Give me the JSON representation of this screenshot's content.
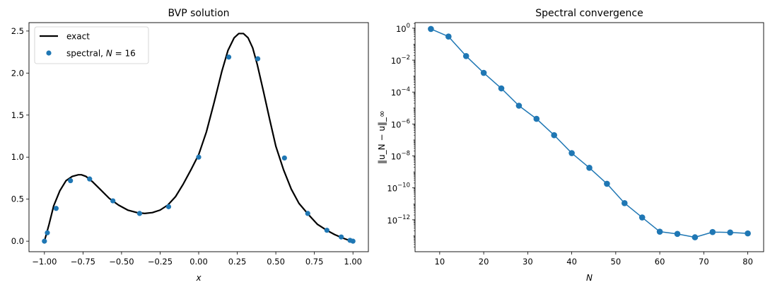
{
  "chart_data": [
    {
      "type": "line",
      "title": "BVP solution",
      "xlabel": "x",
      "ylabel": "",
      "xlim": [
        -1.1,
        1.1
      ],
      "ylim": [
        -0.125,
        2.6
      ],
      "xticks": [
        -1.0,
        -0.75,
        -0.5,
        -0.25,
        0.0,
        0.25,
        0.5,
        0.75,
        1.0
      ],
      "xtick_labels": [
        "−1.00",
        "−0.75",
        "−0.50",
        "−0.25",
        "0.00",
        "0.25",
        "0.50",
        "0.75",
        "1.00"
      ],
      "yticks": [
        0.0,
        0.5,
        1.0,
        1.5,
        2.0,
        2.5
      ],
      "ytick_labels": [
        "0.0",
        "0.5",
        "1.0",
        "1.5",
        "2.0",
        "2.5"
      ],
      "grid": false,
      "legend_position": "top-left",
      "series": [
        {
          "name": "exact",
          "style": "line",
          "color": "#000000",
          "x": [
            -1.0,
            -0.97,
            -0.94,
            -0.9,
            -0.86,
            -0.82,
            -0.78,
            -0.76,
            -0.73,
            -0.69,
            -0.64,
            -0.58,
            -0.52,
            -0.46,
            -0.4,
            -0.35,
            -0.3,
            -0.25,
            -0.2,
            -0.15,
            -0.1,
            -0.05,
            0.0,
            0.05,
            0.1,
            0.15,
            0.19,
            0.23,
            0.26,
            0.29,
            0.32,
            0.35,
            0.38,
            0.42,
            0.46,
            0.5,
            0.55,
            0.6,
            0.65,
            0.71,
            0.77,
            0.83,
            0.88,
            0.93,
            0.96,
            0.98,
            1.0
          ],
          "y": [
            0.0,
            0.2,
            0.42,
            0.6,
            0.72,
            0.77,
            0.79,
            0.79,
            0.77,
            0.71,
            0.62,
            0.51,
            0.43,
            0.37,
            0.34,
            0.33,
            0.34,
            0.37,
            0.43,
            0.53,
            0.68,
            0.85,
            1.03,
            1.3,
            1.65,
            2.02,
            2.27,
            2.42,
            2.47,
            2.47,
            2.42,
            2.3,
            2.1,
            1.78,
            1.45,
            1.13,
            0.85,
            0.62,
            0.45,
            0.32,
            0.2,
            0.13,
            0.08,
            0.04,
            0.02,
            0.01,
            0.0
          ]
        },
        {
          "name": "spectral, ",
          "name_n": "N",
          "name_eq": " = 16",
          "style": "markers",
          "color": "#1f77b4",
          "x": [
            -1.0,
            -0.981,
            -0.924,
            -0.831,
            -0.707,
            -0.556,
            -0.383,
            -0.195,
            0.0,
            0.195,
            0.383,
            0.556,
            0.707,
            0.831,
            0.924,
            0.981,
            1.0
          ],
          "y": [
            0.0,
            0.1,
            0.39,
            0.72,
            0.74,
            0.48,
            0.33,
            0.41,
            1.0,
            2.19,
            2.17,
            0.99,
            0.33,
            0.13,
            0.05,
            0.01,
            0.0
          ]
        }
      ]
    },
    {
      "type": "line",
      "title": "Spectral convergence",
      "xlabel": "N",
      "ylabel": "‖u_N − u‖_∞",
      "y_scale": "log",
      "xlim": [
        4.4,
        83.6
      ],
      "ylim_log10": [
        -14.0,
        0.35
      ],
      "xticks": [
        10,
        20,
        30,
        40,
        50,
        60,
        70,
        80
      ],
      "xtick_labels": [
        "10",
        "20",
        "30",
        "40",
        "50",
        "60",
        "70",
        "80"
      ],
      "ytick_exponents": [
        0,
        -2,
        -4,
        -6,
        -8,
        -10,
        -12
      ],
      "ytick_mantissa": "10",
      "ytick_exponent_labels": [
        "0",
        "−2",
        "−4",
        "−6",
        "−8",
        "−10",
        "−12"
      ],
      "grid": false,
      "series": [
        {
          "name": "",
          "style": "line-markers",
          "color": "#1f77b4",
          "x": [
            8,
            12,
            16,
            20,
            24,
            28,
            32,
            36,
            40,
            44,
            48,
            52,
            56,
            60,
            64,
            68,
            72,
            76,
            80
          ],
          "y": [
            0.9,
            0.3,
            0.018,
            0.0016,
            0.00017,
            1.4e-05,
            2.1e-06,
            2e-07,
            1.5e-08,
            1.8e-09,
            1.8e-10,
            1.1e-11,
            1.4e-12,
            1.8e-13,
            1.3e-13,
            8e-14,
            1.7e-13,
            1.6e-13,
            1.4e-13
          ]
        }
      ]
    }
  ]
}
